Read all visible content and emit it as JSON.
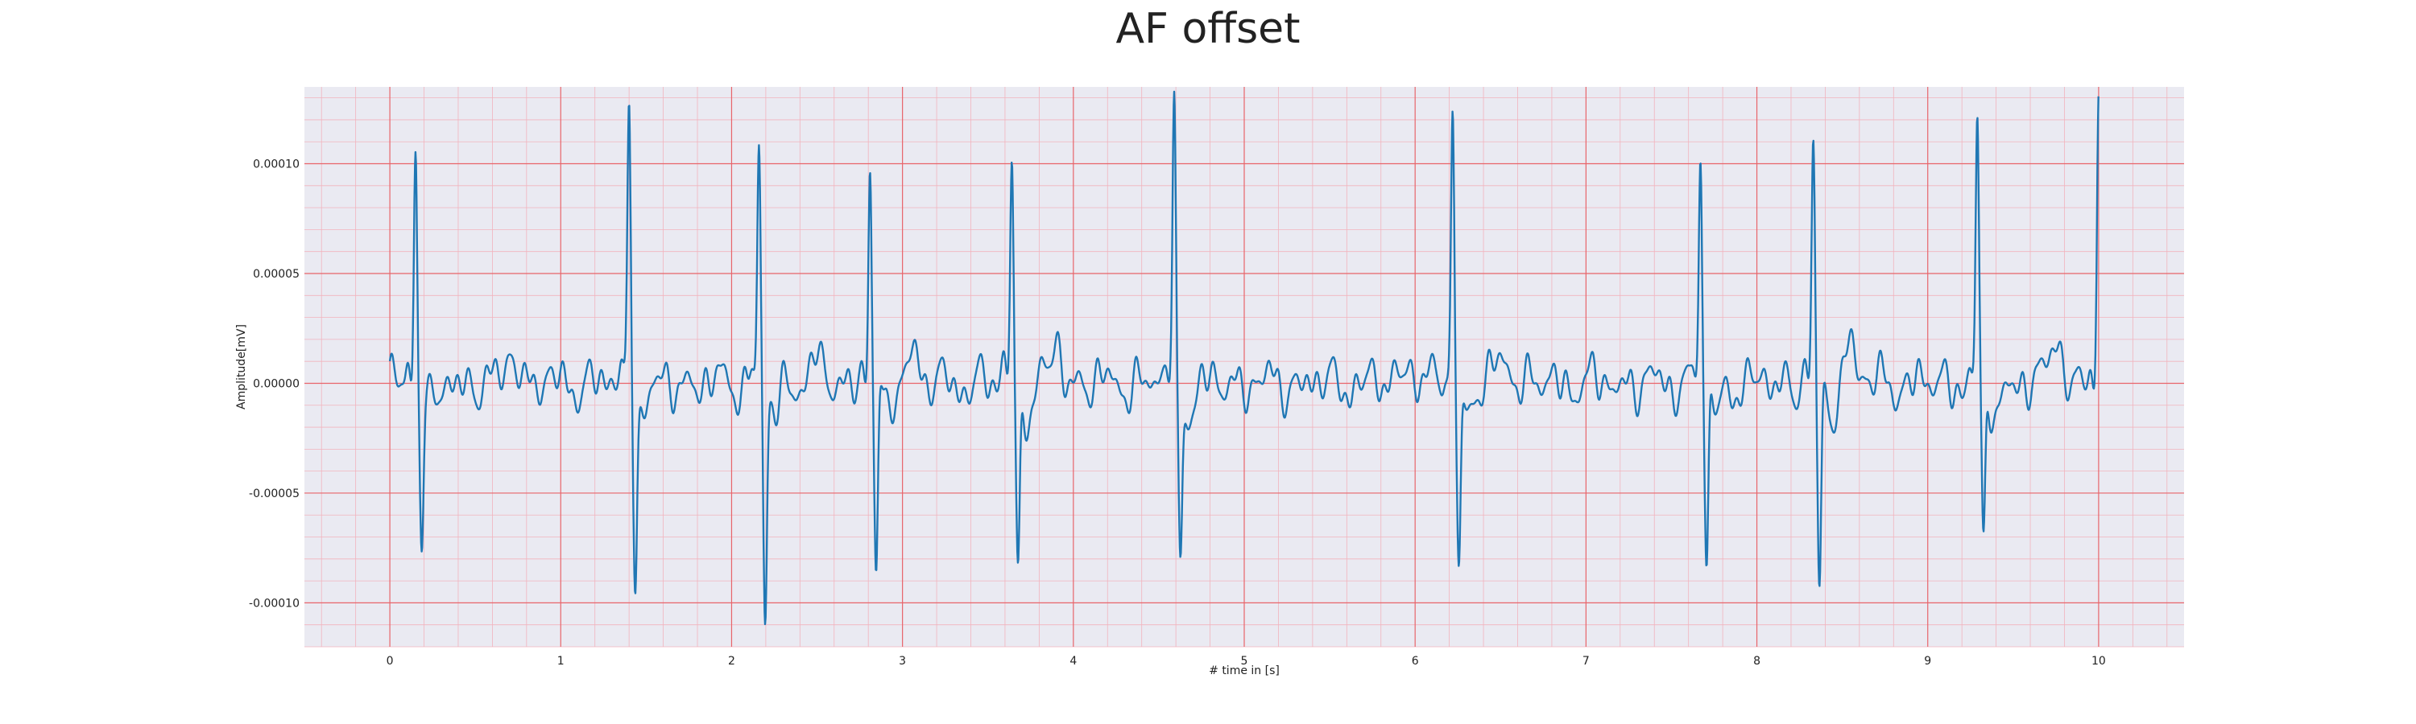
{
  "chart_data": {
    "type": "line",
    "title": "AF offset",
    "xlabel": "# time in [s]",
    "ylabel": "Amplitude[mV]",
    "xlim": [
      -0.5,
      10.5
    ],
    "ylim": [
      -0.00012,
      0.000135
    ],
    "xticks": [
      0,
      1,
      2,
      3,
      4,
      5,
      6,
      7,
      8,
      9,
      10
    ],
    "xtick_labels": [
      "0",
      "1",
      "2",
      "3",
      "4",
      "5",
      "6",
      "7",
      "8",
      "9",
      "10"
    ],
    "yticks": [
      -0.0001,
      -5e-05,
      0,
      5e-05,
      0.0001
    ],
    "ytick_labels": [
      "-0.00010",
      "-0.00005",
      "0.00000",
      "0.00005",
      "0.00010"
    ],
    "grid": true,
    "major_grid_color": "#e8646a",
    "minor_grid_color": "#f2b3bd",
    "background_color": "#eaeaf2",
    "line_color": "#1f77b4",
    "beats": [
      {
        "t": 0.15,
        "peak": 0.000115,
        "trough": -7e-05
      },
      {
        "t": 1.4,
        "peak": 0.000121,
        "trough": -8e-05
      },
      {
        "t": 2.16,
        "peak": 0.000106,
        "trough": -0.000109
      },
      {
        "t": 2.81,
        "peak": 0.000104,
        "trough": -9.3e-05
      },
      {
        "t": 3.64,
        "peak": 0.000103,
        "trough": -8.5e-05
      },
      {
        "t": 4.59,
        "peak": 0.000121,
        "trough": -7.2e-05
      },
      {
        "t": 6.22,
        "peak": 0.000124,
        "trough": -8.2e-05
      },
      {
        "t": 7.67,
        "peak": 0.000105,
        "trough": -8.7e-05
      },
      {
        "t": 8.33,
        "peak": 0.000103,
        "trough": -9.4e-05
      },
      {
        "t": 9.29,
        "peak": 0.000116,
        "trough": -8e-05
      },
      {
        "t": 10.0,
        "peak": 0.000122,
        "trough": -2.2e-05
      }
    ],
    "baseline_waves": [
      {
        "t": 0.72,
        "value": 1.6e-05
      },
      {
        "t": 2.48,
        "value": 1.2e-05
      },
      {
        "t": 3.05,
        "value": 1.8e-05
      },
      {
        "t": 3.9,
        "value": 1.9e-05
      },
      {
        "t": 5.95,
        "value": 1.2e-05
      },
      {
        "t": 6.52,
        "value": 1.6e-05
      },
      {
        "t": 8.55,
        "value": 2.1e-05
      },
      {
        "t": 9.75,
        "value": 2.5e-05
      }
    ]
  }
}
